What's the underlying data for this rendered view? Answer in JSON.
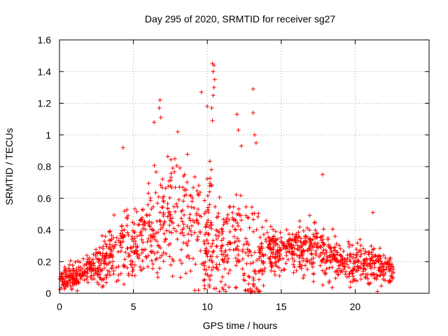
{
  "chart_data": {
    "type": "scatter",
    "title": "Day 295 of 2020, SRMTID for receiver sg27",
    "xlabel": "GPS time / hours",
    "ylabel": "SRMTID / TECUs",
    "xlim": [
      0,
      25
    ],
    "ylim": [
      0,
      1.6
    ],
    "x_ticks": [
      0,
      5,
      10,
      15,
      20
    ],
    "x_tick_labels": [
      "0",
      "5",
      "10",
      "15",
      "20"
    ],
    "y_ticks": [
      0,
      0.2,
      0.4,
      0.6,
      0.8,
      1,
      1.2,
      1.4,
      1.6
    ],
    "y_tick_labels": [
      "0",
      "0.2",
      "0.4",
      "0.6",
      "0.8",
      "1",
      "1.2",
      "1.4",
      "1.6"
    ],
    "grid": true,
    "marker": "plus",
    "color": "#ff0000",
    "envelope": {
      "description": "approximate median and spread of the point cloud over GPS hours (data units)",
      "hours": [
        0,
        1,
        2,
        3,
        4,
        5,
        6,
        7,
        8,
        9,
        10,
        11,
        12,
        13,
        14,
        15,
        16,
        17,
        18,
        19,
        20,
        21,
        22,
        22.6
      ],
      "median": [
        0.09,
        0.1,
        0.15,
        0.2,
        0.3,
        0.3,
        0.4,
        0.5,
        0.5,
        0.42,
        0.35,
        0.3,
        0.28,
        0.2,
        0.28,
        0.27,
        0.28,
        0.3,
        0.25,
        0.2,
        0.2,
        0.18,
        0.16,
        0.12
      ],
      "spread": [
        0.04,
        0.05,
        0.06,
        0.1,
        0.15,
        0.12,
        0.17,
        0.2,
        0.2,
        0.2,
        0.25,
        0.2,
        0.2,
        0.22,
        0.1,
        0.09,
        0.1,
        0.11,
        0.1,
        0.08,
        0.08,
        0.08,
        0.07,
        0.05
      ]
    },
    "notable_points": [
      {
        "x": 4.3,
        "y": 0.92
      },
      {
        "x": 6.4,
        "y": 1.08
      },
      {
        "x": 6.8,
        "y": 1.22
      },
      {
        "x": 6.75,
        "y": 1.17
      },
      {
        "x": 6.85,
        "y": 1.11
      },
      {
        "x": 8.0,
        "y": 1.02
      },
      {
        "x": 9.6,
        "y": 1.27
      },
      {
        "x": 10.0,
        "y": 1.18
      },
      {
        "x": 10.35,
        "y": 1.45
      },
      {
        "x": 10.45,
        "y": 1.44
      },
      {
        "x": 10.4,
        "y": 1.4
      },
      {
        "x": 10.5,
        "y": 1.35
      },
      {
        "x": 10.45,
        "y": 1.3
      },
      {
        "x": 10.4,
        "y": 1.25
      },
      {
        "x": 10.3,
        "y": 1.17
      },
      {
        "x": 10.35,
        "y": 1.09
      },
      {
        "x": 12.0,
        "y": 1.13
      },
      {
        "x": 12.1,
        "y": 1.03
      },
      {
        "x": 12.3,
        "y": 0.93
      },
      {
        "x": 13.1,
        "y": 1.29
      },
      {
        "x": 13.1,
        "y": 1.14
      },
      {
        "x": 13.2,
        "y": 1.0
      },
      {
        "x": 13.3,
        "y": 0.95
      },
      {
        "x": 17.8,
        "y": 0.75
      },
      {
        "x": 21.2,
        "y": 0.51
      },
      {
        "x": 9.4,
        "y": 0.02
      },
      {
        "x": 9.8,
        "y": 0.05
      },
      {
        "x": 12.8,
        "y": 0.02
      },
      {
        "x": 13.0,
        "y": 0.01
      }
    ]
  }
}
